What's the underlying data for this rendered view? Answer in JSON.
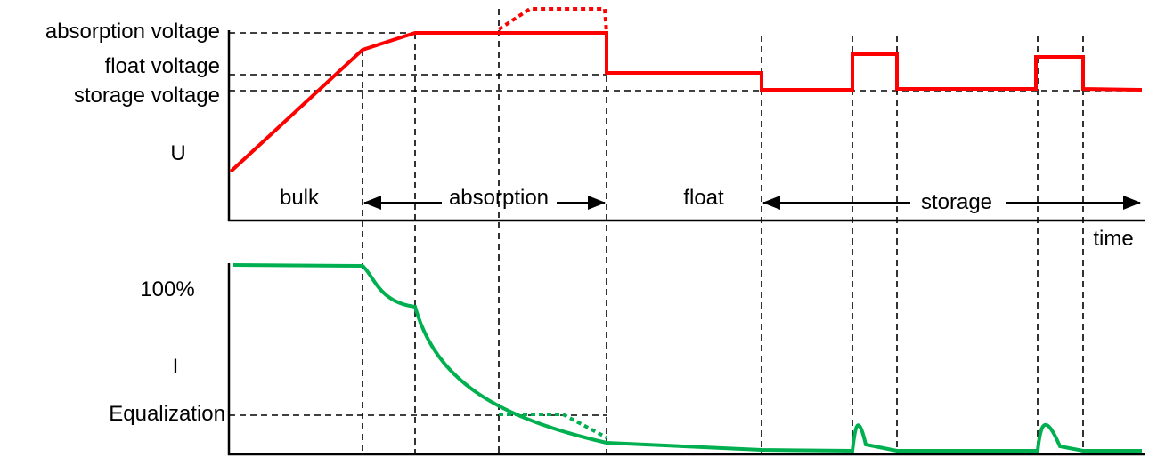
{
  "labels": {
    "absorption_voltage": "absorption voltage",
    "float_voltage": "float voltage",
    "storage_voltage": "storage voltage",
    "u": "U",
    "time": "time",
    "i_100": "100%",
    "i": "I",
    "equalization": "Equalization"
  },
  "phases": {
    "bulk": "bulk",
    "absorption": "absorption",
    "float": "float",
    "storage": "storage"
  },
  "colors": {
    "voltage": "#ff0000",
    "current": "#00b050"
  }
}
